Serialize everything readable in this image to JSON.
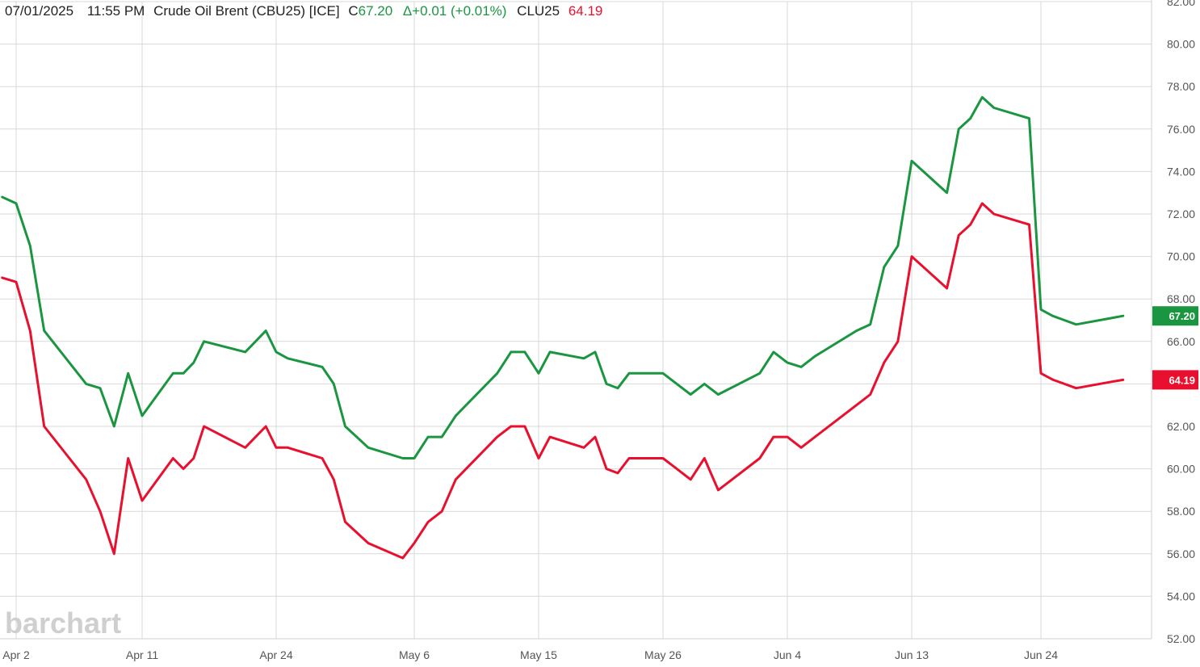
{
  "header": {
    "date": "07/01/2025",
    "time": "11:55 PM",
    "name": "Crude Oil Brent (CBU25) [ICE]",
    "close_prefix": "C",
    "close": "67.20",
    "change": "Δ+0.01 (+0.01%)",
    "compare_symbol": "CLU25",
    "compare_value": "64.19"
  },
  "watermark": "barchart",
  "colors": {
    "series1": "#1a9641",
    "series2": "#e8102e",
    "grid": "#d9d9d9",
    "axis_text": "#555555"
  },
  "chart_data": {
    "type": "line",
    "x_tick_labels": [
      "Apr 2",
      "Apr 11",
      "Apr 24",
      "May 6",
      "May 15",
      "May 26",
      "Jun 4",
      "Jun 13",
      "Jun 24"
    ],
    "y_tick_labels": [
      "52.00",
      "54.00",
      "56.00",
      "58.00",
      "60.00",
      "62.00",
      "64.00",
      "66.00",
      "68.00",
      "70.00",
      "72.00",
      "74.00",
      "76.00",
      "78.00",
      "80.00",
      "82.00"
    ],
    "ylim": [
      52,
      82
    ],
    "grid": true,
    "series": [
      {
        "name": "CBU25",
        "last_label": "67.20",
        "x": [
          "2025-04-01",
          "2025-04-02",
          "2025-04-03",
          "2025-04-04",
          "2025-04-07",
          "2025-04-08",
          "2025-04-09",
          "2025-04-10",
          "2025-04-11",
          "2025-04-14",
          "2025-04-15",
          "2025-04-16",
          "2025-04-17",
          "2025-04-21",
          "2025-04-22",
          "2025-04-23",
          "2025-04-24",
          "2025-04-25",
          "2025-04-28",
          "2025-04-29",
          "2025-04-30",
          "2025-05-01",
          "2025-05-02",
          "2025-05-05",
          "2025-05-06",
          "2025-05-07",
          "2025-05-08",
          "2025-05-09",
          "2025-05-12",
          "2025-05-13",
          "2025-05-14",
          "2025-05-15",
          "2025-05-16",
          "2025-05-19",
          "2025-05-20",
          "2025-05-21",
          "2025-05-22",
          "2025-05-23",
          "2025-05-26",
          "2025-05-27",
          "2025-05-28",
          "2025-05-29",
          "2025-05-30",
          "2025-06-02",
          "2025-06-03",
          "2025-06-04",
          "2025-06-05",
          "2025-06-06",
          "2025-06-09",
          "2025-06-10",
          "2025-06-11",
          "2025-06-12",
          "2025-06-13",
          "2025-06-16",
          "2025-06-17",
          "2025-06-18",
          "2025-06-19",
          "2025-06-20",
          "2025-06-23",
          "2025-06-24",
          "2025-06-25",
          "2025-06-26",
          "2025-06-27",
          "2025-06-30",
          "2025-07-01"
        ],
        "values": [
          72.8,
          72.5,
          70.5,
          66.5,
          64.0,
          63.8,
          62.0,
          64.5,
          62.5,
          64.5,
          64.5,
          65.0,
          66.0,
          65.5,
          66.0,
          66.5,
          65.5,
          65.2,
          64.8,
          64.0,
          62.0,
          61.5,
          61.0,
          60.5,
          60.5,
          61.5,
          61.5,
          62.5,
          64.5,
          65.5,
          65.5,
          64.5,
          65.5,
          65.2,
          65.5,
          64.0,
          63.8,
          64.5,
          64.5,
          64.0,
          63.5,
          64.0,
          63.5,
          64.5,
          65.5,
          65.0,
          64.8,
          65.3,
          66.5,
          66.8,
          69.5,
          70.5,
          74.5,
          73.0,
          76.0,
          76.5,
          77.5,
          77.0,
          76.5,
          67.5,
          67.2,
          67.0,
          66.8,
          67.1,
          67.2
        ]
      },
      {
        "name": "CLU25",
        "last_label": "64.19",
        "x": [
          "2025-04-01",
          "2025-04-02",
          "2025-04-03",
          "2025-04-04",
          "2025-04-07",
          "2025-04-08",
          "2025-04-09",
          "2025-04-10",
          "2025-04-11",
          "2025-04-14",
          "2025-04-15",
          "2025-04-16",
          "2025-04-17",
          "2025-04-21",
          "2025-04-22",
          "2025-04-23",
          "2025-04-24",
          "2025-04-25",
          "2025-04-28",
          "2025-04-29",
          "2025-04-30",
          "2025-05-01",
          "2025-05-02",
          "2025-05-05",
          "2025-05-06",
          "2025-05-07",
          "2025-05-08",
          "2025-05-09",
          "2025-05-12",
          "2025-05-13",
          "2025-05-14",
          "2025-05-15",
          "2025-05-16",
          "2025-05-19",
          "2025-05-20",
          "2025-05-21",
          "2025-05-22",
          "2025-05-23",
          "2025-05-26",
          "2025-05-27",
          "2025-05-28",
          "2025-05-29",
          "2025-05-30",
          "2025-06-02",
          "2025-06-03",
          "2025-06-04",
          "2025-06-05",
          "2025-06-06",
          "2025-06-09",
          "2025-06-10",
          "2025-06-11",
          "2025-06-12",
          "2025-06-13",
          "2025-06-16",
          "2025-06-17",
          "2025-06-18",
          "2025-06-19",
          "2025-06-20",
          "2025-06-23",
          "2025-06-24",
          "2025-06-25",
          "2025-06-26",
          "2025-06-27",
          "2025-06-30",
          "2025-07-01"
        ],
        "values": [
          69.0,
          68.8,
          66.5,
          62.0,
          59.5,
          58.0,
          56.0,
          60.5,
          58.5,
          60.5,
          60.0,
          60.5,
          62.0,
          61.0,
          61.5,
          62.0,
          61.0,
          61.0,
          60.5,
          59.5,
          57.5,
          57.0,
          56.5,
          55.8,
          56.5,
          57.5,
          58.0,
          59.5,
          61.5,
          62.0,
          62.0,
          60.5,
          61.5,
          61.0,
          61.5,
          60.0,
          59.8,
          60.5,
          60.5,
          60.0,
          59.5,
          60.5,
          59.0,
          60.5,
          61.5,
          61.5,
          61.0,
          61.5,
          63.0,
          63.5,
          65.0,
          66.0,
          70.0,
          68.5,
          71.0,
          71.5,
          72.5,
          72.0,
          71.5,
          64.5,
          64.2,
          64.0,
          63.8,
          64.1,
          64.19
        ]
      }
    ]
  }
}
